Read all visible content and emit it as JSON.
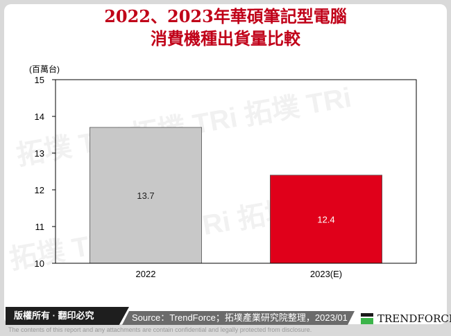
{
  "title": [
    "2022、2023年華碩筆記型電腦",
    "消費機種出貨量比較"
  ],
  "chart_data": {
    "type": "bar",
    "categories": [
      "2022",
      "2023(E)"
    ],
    "values": [
      13.7,
      12.4
    ],
    "data_labels": [
      "13.7",
      "12.4"
    ],
    "ylabel": "(百萬台)",
    "ylim": [
      10,
      15
    ],
    "yticks": [
      "10",
      "11",
      "12",
      "13",
      "14",
      "15"
    ],
    "colors": [
      "#c8c8c8",
      "#e0001a"
    ],
    "label_colors": [
      "#222222",
      "#ffffff"
    ],
    "grid": false
  },
  "watermark": "拓墣 TRi TOPOLOGY RESEARCH INSTITUTE",
  "footer": {
    "copyright": "版權所有 · 翻印必究",
    "source": "Source：TrendForce；拓墣產業研究院整理，2023/01",
    "logo": "TRENDFORCE",
    "disclaimer": "The contents of this report and any attachments are contain confidential and legally protected from disclosure."
  }
}
